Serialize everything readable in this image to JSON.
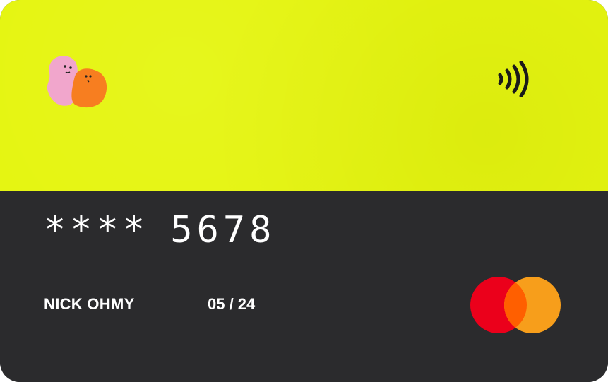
{
  "card": {
    "number_mask": "****",
    "last_four": "5678",
    "holder_name": "NICK OHMY",
    "expiry": "05 / 24",
    "colors": {
      "top": "#e5f50f",
      "bottom": "#2b2b2d",
      "text": "#ffffff"
    },
    "icons": {
      "brand_logo": "blob-characters-logo",
      "contactless": "contactless-icon",
      "network": "mastercard-logo"
    },
    "network_colors": {
      "left": "#eb001b",
      "right": "#f79e1b",
      "overlap": "#ff5f00"
    }
  }
}
